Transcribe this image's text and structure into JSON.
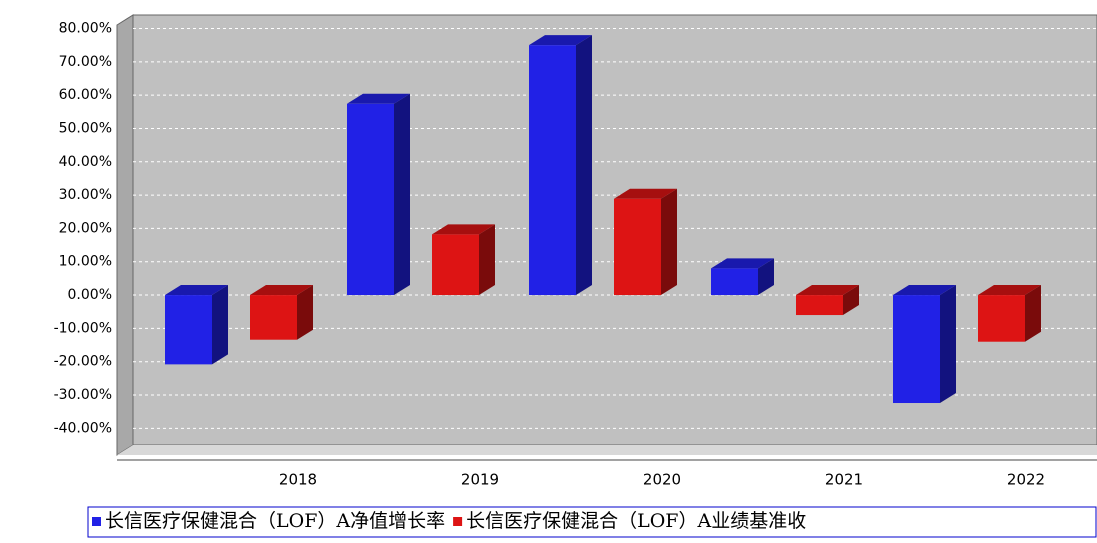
{
  "chart_data": {
    "type": "bar3d",
    "categories": [
      "2018",
      "2019",
      "2020",
      "2021",
      "2022"
    ],
    "series": [
      {
        "name": "长信医疗保健混合（LOF）A净值增长率",
        "color": "#2121e6",
        "values": [
          -20.8,
          57.4,
          75.0,
          8.0,
          -32.4
        ]
      },
      {
        "name": "长信医疗保健混合（LOF）A业绩基准收",
        "color": "#dd1414",
        "values": [
          -13.4,
          18.2,
          28.9,
          -6.0,
          -14.0
        ]
      }
    ],
    "ylim": [
      -45,
      83
    ],
    "yticks": [
      {
        "value": -40,
        "label": "-40.00%"
      },
      {
        "value": -30,
        "label": "-30.00%"
      },
      {
        "value": -20,
        "label": "-20.00%"
      },
      {
        "value": -10,
        "label": "-10.00%"
      },
      {
        "value": 0,
        "label": "0.00%"
      },
      {
        "value": 10,
        "label": "10.00%"
      },
      {
        "value": 20,
        "label": "20.00%"
      },
      {
        "value": 30,
        "label": "30.00%"
      },
      {
        "value": 40,
        "label": "40.00%"
      },
      {
        "value": 50,
        "label": "50.00%"
      },
      {
        "value": 60,
        "label": "60.00%"
      },
      {
        "value": 70,
        "label": "70.00%"
      },
      {
        "value": 80,
        "label": "80.00%"
      }
    ],
    "grid": true
  }
}
